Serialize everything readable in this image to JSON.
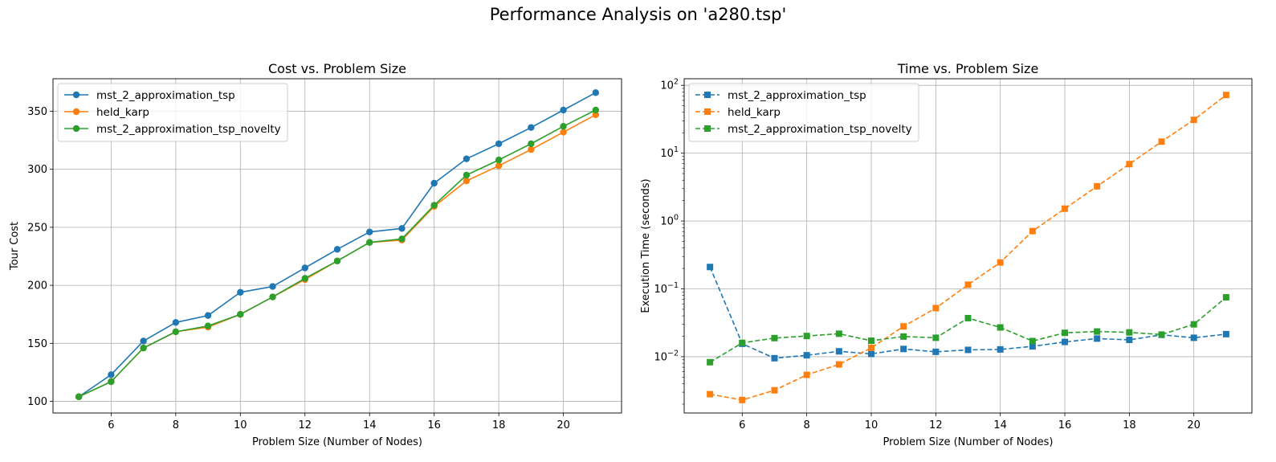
{
  "figure": {
    "title": "Performance Analysis on 'a280.tsp'"
  },
  "chart_data": [
    {
      "type": "line",
      "title": "Cost vs. Problem Size",
      "xlabel": "Problem Size (Number of Nodes)",
      "ylabel": "Tour Cost",
      "x": [
        5,
        6,
        7,
        8,
        9,
        10,
        11,
        12,
        13,
        14,
        15,
        16,
        17,
        18,
        19,
        20,
        21
      ],
      "xlim": [
        4.2,
        21.8
      ],
      "ylim": [
        90,
        378
      ],
      "xticks": [
        6,
        8,
        10,
        12,
        14,
        16,
        18,
        20
      ],
      "yticks": [
        100,
        150,
        200,
        250,
        300,
        350
      ],
      "grid": true,
      "legend_position": "top-left",
      "series": [
        {
          "name": "mst_2_approximation_tsp",
          "color": "#1f77b4",
          "marker": "circle",
          "linestyle": "solid",
          "values": [
            104,
            123,
            152,
            168,
            174,
            194,
            199,
            215,
            231,
            246,
            249,
            288,
            309,
            322,
            336,
            351,
            366
          ]
        },
        {
          "name": "held_karp",
          "color": "#ff7f0e",
          "marker": "circle",
          "linestyle": "solid",
          "values": [
            104,
            117,
            146,
            160,
            164,
            175,
            190,
            205,
            221,
            237,
            239,
            268,
            290,
            303,
            317,
            332,
            347
          ]
        },
        {
          "name": "mst_2_approximation_tsp_novelty",
          "color": "#2ca02c",
          "marker": "circle",
          "linestyle": "solid",
          "values": [
            104,
            117,
            146,
            160,
            165,
            175,
            190,
            206,
            221,
            237,
            240,
            269,
            295,
            308,
            322,
            337,
            351
          ]
        }
      ]
    },
    {
      "type": "line",
      "title": "Time vs. Problem Size",
      "xlabel": "Problem Size (Number of Nodes)",
      "ylabel": "Execution Time (seconds)",
      "yscale": "log",
      "x": [
        5,
        6,
        7,
        8,
        9,
        10,
        11,
        12,
        13,
        14,
        15,
        16,
        17,
        18,
        19,
        20,
        21
      ],
      "xlim": [
        4.2,
        21.8
      ],
      "ylim": [
        0.00148,
        125
      ],
      "xticks": [
        6,
        8,
        10,
        12,
        14,
        16,
        18,
        20
      ],
      "ytick_exponents": [
        -2,
        -1,
        0,
        1,
        2
      ],
      "ytick_base": "10",
      "grid": true,
      "legend_position": "top-left",
      "series": [
        {
          "name": "mst_2_approximation_tsp",
          "color": "#1f77b4",
          "marker": "square",
          "linestyle": "dashed",
          "values": [
            0.21,
            0.0155,
            0.0095,
            0.0105,
            0.012,
            0.011,
            0.013,
            0.0118,
            0.0126,
            0.0128,
            0.0142,
            0.0165,
            0.0185,
            0.0177,
            0.021,
            0.019,
            0.0215
          ]
        },
        {
          "name": "held_karp",
          "color": "#ff7f0e",
          "marker": "square",
          "linestyle": "dashed",
          "values": [
            0.0028,
            0.0023,
            0.0032,
            0.0054,
            0.0077,
            0.0135,
            0.028,
            0.052,
            0.115,
            0.245,
            0.71,
            1.52,
            3.25,
            6.9,
            14.8,
            31.0,
            72.0
          ]
        },
        {
          "name": "mst_2_approximation_tsp_novelty",
          "color": "#2ca02c",
          "marker": "square",
          "linestyle": "dashed",
          "values": [
            0.0083,
            0.016,
            0.0188,
            0.0202,
            0.0218,
            0.0172,
            0.0198,
            0.019,
            0.037,
            0.027,
            0.017,
            0.0225,
            0.0235,
            0.0228,
            0.0212,
            0.03,
            0.075
          ]
        }
      ]
    }
  ]
}
